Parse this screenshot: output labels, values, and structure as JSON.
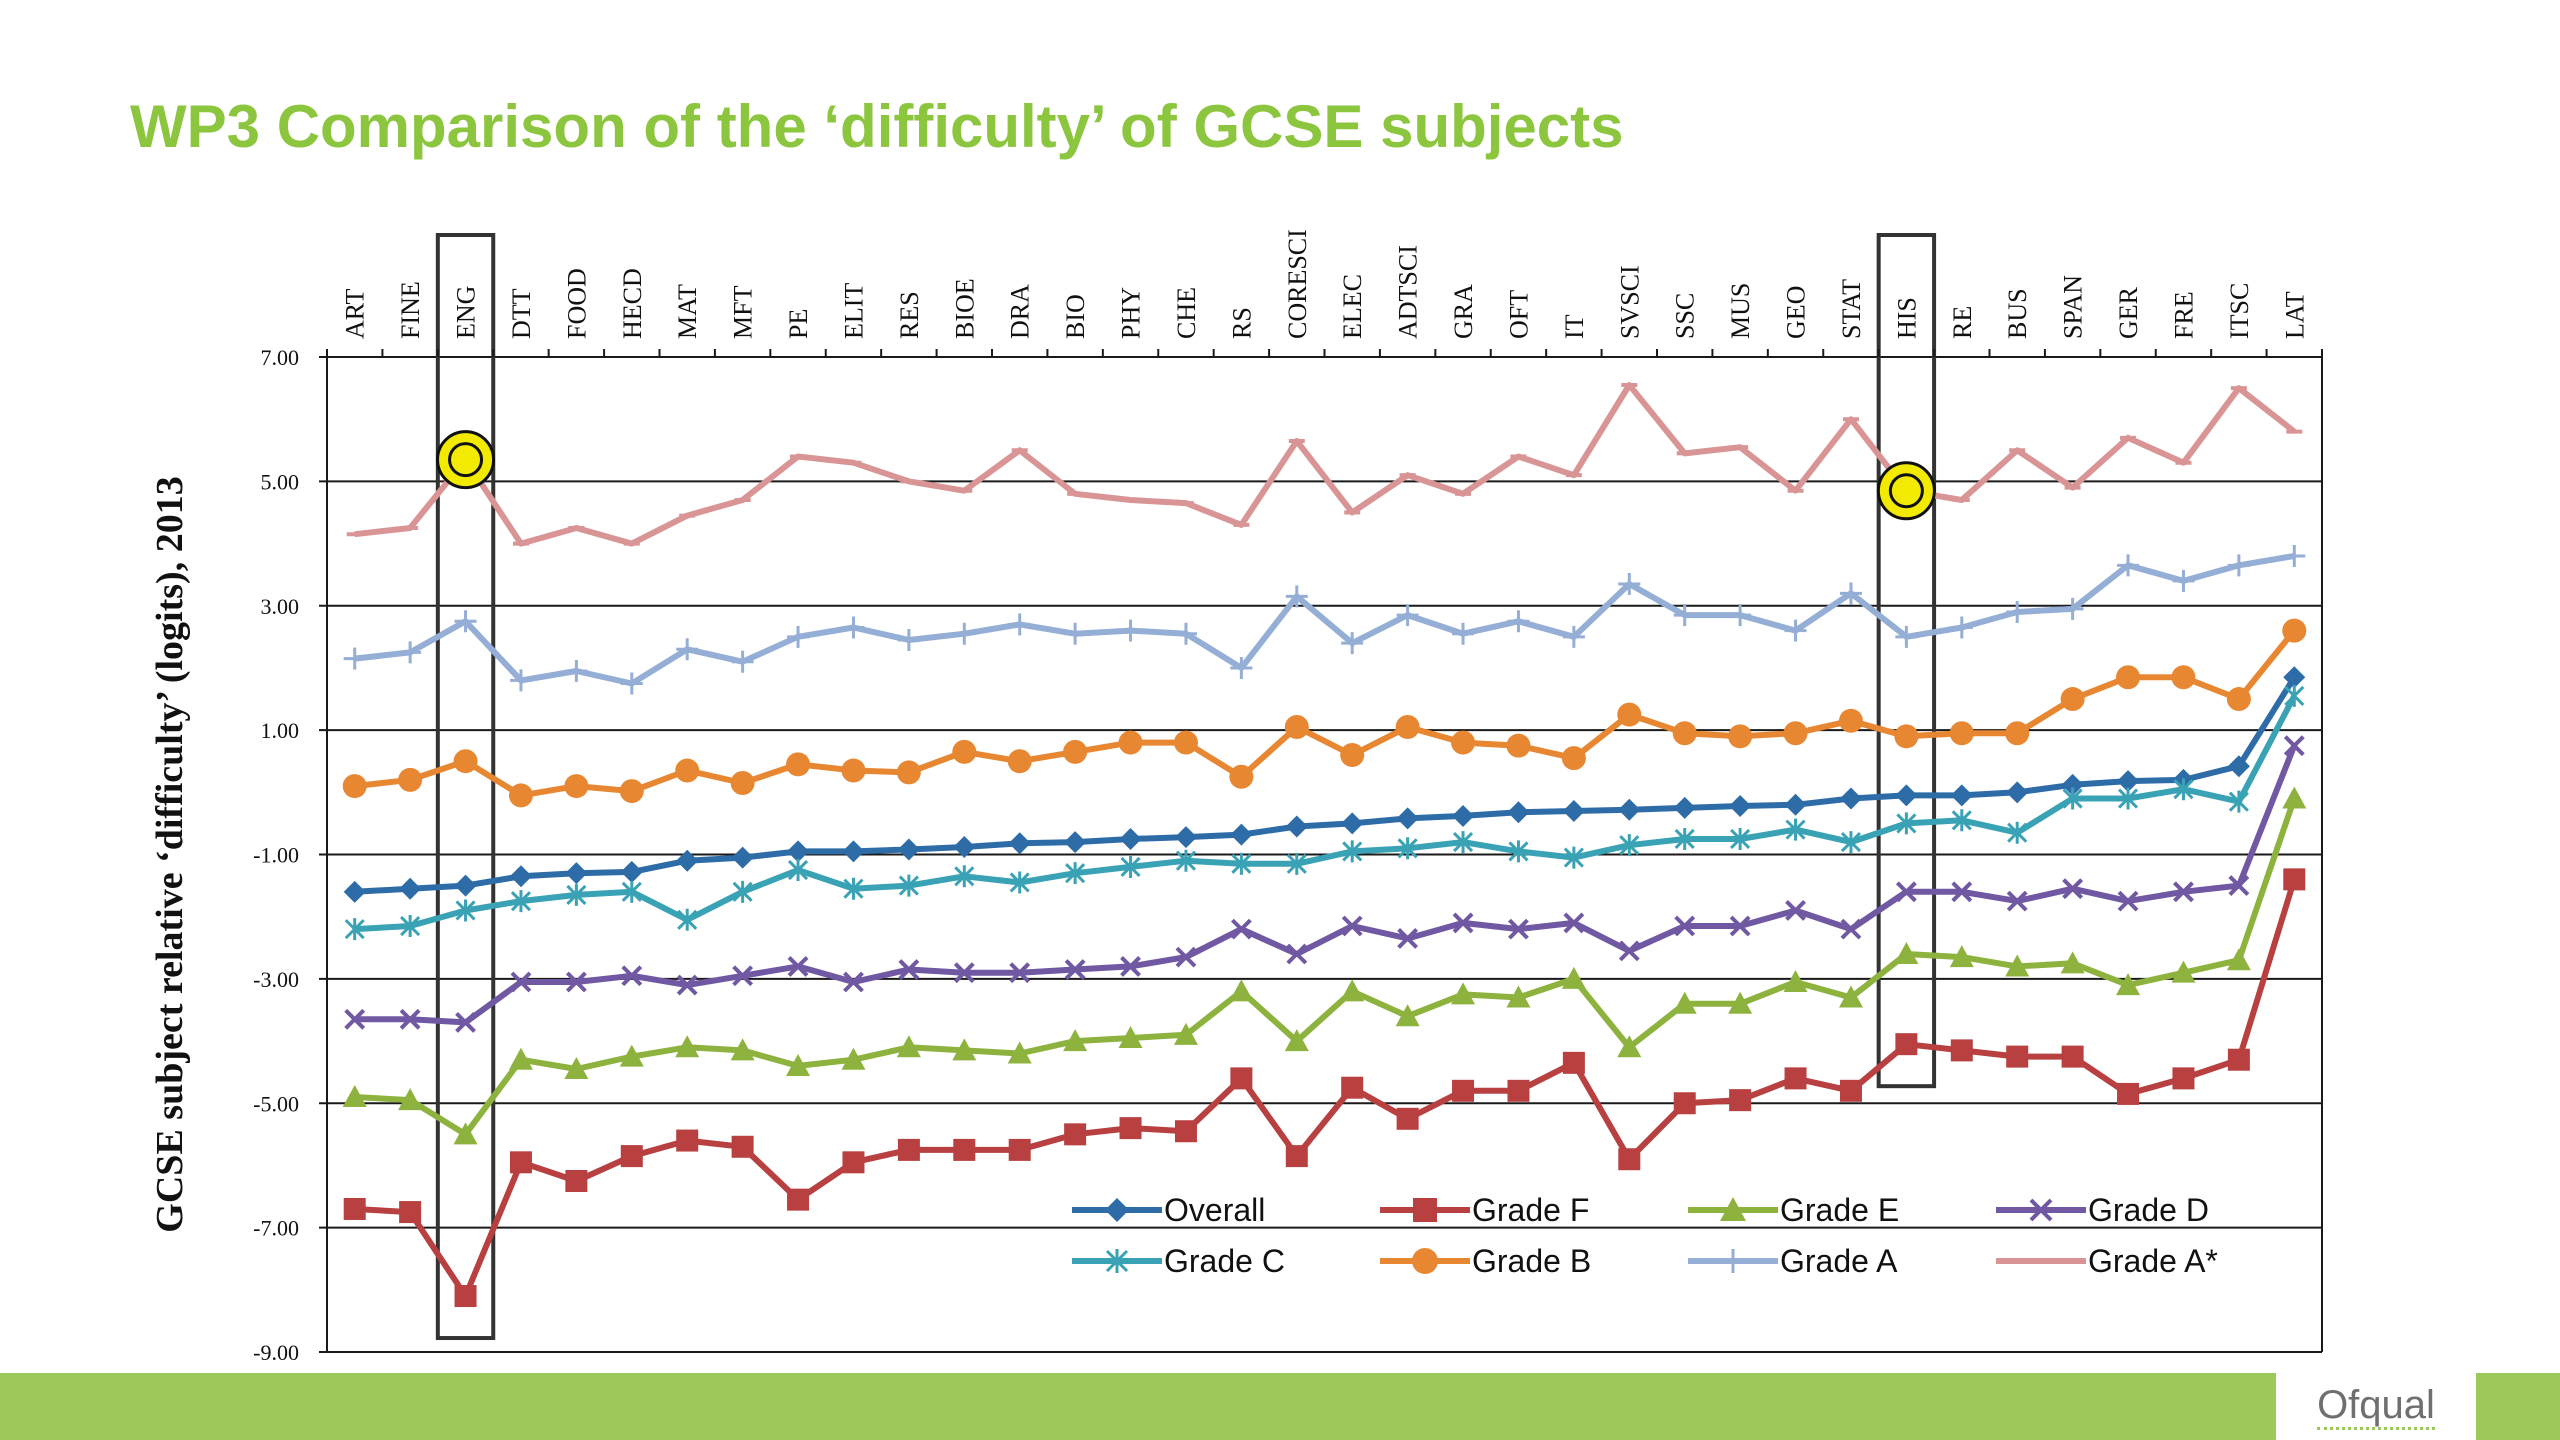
{
  "slide": {
    "title": "WP3  Comparison of the ‘difficulty’ of GCSE subjects",
    "logo": "Ofqual"
  },
  "colors": {
    "title": "#8cc63f",
    "footer": "#9dc95a",
    "highlight_ring": "#f2ea00"
  },
  "chart_data": {
    "type": "line",
    "ylabel": "GCSE subject relative ‘difficulty’ (logits), 2013",
    "ylim": [
      -9,
      7
    ],
    "yticks": [
      "7.00",
      "5.00",
      "3.00",
      "1.00",
      "-1.00",
      "-3.00",
      "-5.00",
      "-7.00",
      "-9.00"
    ],
    "grid": true,
    "legend_position": "bottom-right",
    "categories": [
      "ART",
      "FINE",
      "ENG",
      "DTT",
      "FOOD",
      "HECD",
      "MAT",
      "MFT",
      "PE",
      "ELIT",
      "RES",
      "BIOE",
      "DRA",
      "BIO",
      "PHY",
      "CHE",
      "RS",
      "CORESCI",
      "ELEC",
      "ADTSCI",
      "GRA",
      "OFT",
      "IT",
      "SVSCI",
      "SSC",
      "MUS",
      "GEO",
      "STAT",
      "HIS",
      "RE",
      "BUS",
      "SPAN",
      "GER",
      "FRE",
      "ITSC",
      "LAT"
    ],
    "highlighted_categories": [
      "ENG",
      "HIS"
    ],
    "highlight_points": [
      {
        "category": "ENG",
        "series": "Grade A*"
      },
      {
        "category": "HIS",
        "series": "Grade A*"
      }
    ],
    "series": [
      {
        "name": "Overall",
        "color": "#2e6ca8",
        "marker": "diamond",
        "values": [
          -1.6,
          -1.55,
          -1.5,
          -1.35,
          -1.3,
          -1.28,
          -1.1,
          -1.05,
          -0.95,
          -0.95,
          -0.92,
          -0.88,
          -0.82,
          -0.8,
          -0.75,
          -0.72,
          -0.68,
          -0.55,
          -0.5,
          -0.42,
          -0.38,
          -0.32,
          -0.3,
          -0.28,
          -0.25,
          -0.22,
          -0.2,
          -0.1,
          -0.05,
          -0.05,
          0.0,
          0.12,
          0.18,
          0.2,
          0.42,
          1.85
        ]
      },
      {
        "name": "Grade F",
        "color": "#b84040",
        "marker": "square",
        "values": [
          -6.7,
          -6.75,
          -8.1,
          -5.95,
          -6.25,
          -5.85,
          -5.6,
          -5.7,
          -6.55,
          -5.95,
          -5.75,
          -5.75,
          -5.75,
          -5.5,
          -5.4,
          -5.45,
          -4.6,
          -5.85,
          -4.75,
          -5.25,
          -4.8,
          -4.8,
          -4.35,
          -5.9,
          -5.0,
          -4.95,
          -4.6,
          -4.8,
          -4.05,
          -4.15,
          -4.25,
          -4.25,
          -4.85,
          -4.6,
          -4.3,
          -1.4
        ]
      },
      {
        "name": "Grade E",
        "color": "#8db33e",
        "marker": "triangle",
        "values": [
          -4.9,
          -4.95,
          -5.5,
          -4.3,
          -4.45,
          -4.25,
          -4.1,
          -4.15,
          -4.4,
          -4.3,
          -4.1,
          -4.15,
          -4.2,
          -4.0,
          -3.95,
          -3.9,
          -3.2,
          -4.0,
          -3.2,
          -3.6,
          -3.25,
          -3.3,
          -3.0,
          -4.1,
          -3.4,
          -3.4,
          -3.05,
          -3.3,
          -2.6,
          -2.65,
          -2.8,
          -2.75,
          -3.1,
          -2.9,
          -2.7,
          -0.1
        ]
      },
      {
        "name": "Grade D",
        "color": "#7058a3",
        "marker": "x",
        "values": [
          -3.65,
          -3.65,
          -3.7,
          -3.05,
          -3.05,
          -2.95,
          -3.1,
          -2.95,
          -2.8,
          -3.05,
          -2.85,
          -2.9,
          -2.9,
          -2.85,
          -2.8,
          -2.65,
          -2.2,
          -2.6,
          -2.15,
          -2.35,
          -2.1,
          -2.2,
          -2.1,
          -2.55,
          -2.15,
          -2.15,
          -1.9,
          -2.2,
          -1.6,
          -1.6,
          -1.75,
          -1.55,
          -1.75,
          -1.6,
          -1.5,
          0.75
        ]
      },
      {
        "name": "Grade C",
        "color": "#3aa2b5",
        "marker": "asterisk",
        "values": [
          -2.2,
          -2.15,
          -1.9,
          -1.75,
          -1.65,
          -1.6,
          -2.05,
          -1.6,
          -1.25,
          -1.55,
          -1.5,
          -1.35,
          -1.45,
          -1.3,
          -1.2,
          -1.1,
          -1.15,
          -1.15,
          -0.95,
          -0.9,
          -0.8,
          -0.95,
          -1.05,
          -0.85,
          -0.75,
          -0.75,
          -0.6,
          -0.8,
          -0.5,
          -0.45,
          -0.65,
          -0.1,
          -0.1,
          0.05,
          -0.15,
          1.55
        ]
      },
      {
        "name": "Grade B",
        "color": "#e88732",
        "marker": "circle",
        "values": [
          0.1,
          0.2,
          0.5,
          -0.05,
          0.1,
          0.02,
          0.35,
          0.15,
          0.45,
          0.35,
          0.32,
          0.65,
          0.5,
          0.65,
          0.8,
          0.8,
          0.25,
          1.05,
          0.6,
          1.05,
          0.8,
          0.75,
          0.55,
          1.25,
          0.95,
          0.9,
          0.95,
          1.15,
          0.9,
          0.95,
          0.95,
          1.5,
          1.85,
          1.85,
          1.5,
          2.6
        ]
      },
      {
        "name": "Grade A",
        "color": "#94aed6",
        "marker": "plus",
        "values": [
          2.15,
          2.25,
          2.75,
          1.8,
          1.95,
          1.75,
          2.3,
          2.1,
          2.5,
          2.65,
          2.45,
          2.55,
          2.7,
          2.55,
          2.6,
          2.55,
          2.0,
          3.15,
          2.4,
          2.85,
          2.55,
          2.75,
          2.5,
          3.35,
          2.85,
          2.85,
          2.6,
          3.2,
          2.5,
          2.65,
          2.9,
          2.95,
          3.65,
          3.4,
          3.65,
          3.8
        ]
      },
      {
        "name": "Grade A*",
        "color": "#d99595",
        "marker": "dash",
        "values": [
          4.15,
          4.25,
          5.35,
          4.0,
          4.25,
          4.0,
          4.45,
          4.7,
          5.4,
          5.3,
          5.0,
          4.85,
          5.5,
          4.8,
          4.7,
          4.65,
          4.3,
          5.65,
          4.5,
          5.1,
          4.8,
          5.4,
          5.1,
          6.55,
          5.45,
          5.55,
          4.85,
          6.0,
          4.85,
          4.7,
          5.5,
          4.9,
          5.7,
          5.3,
          6.5,
          5.8
        ]
      }
    ]
  }
}
